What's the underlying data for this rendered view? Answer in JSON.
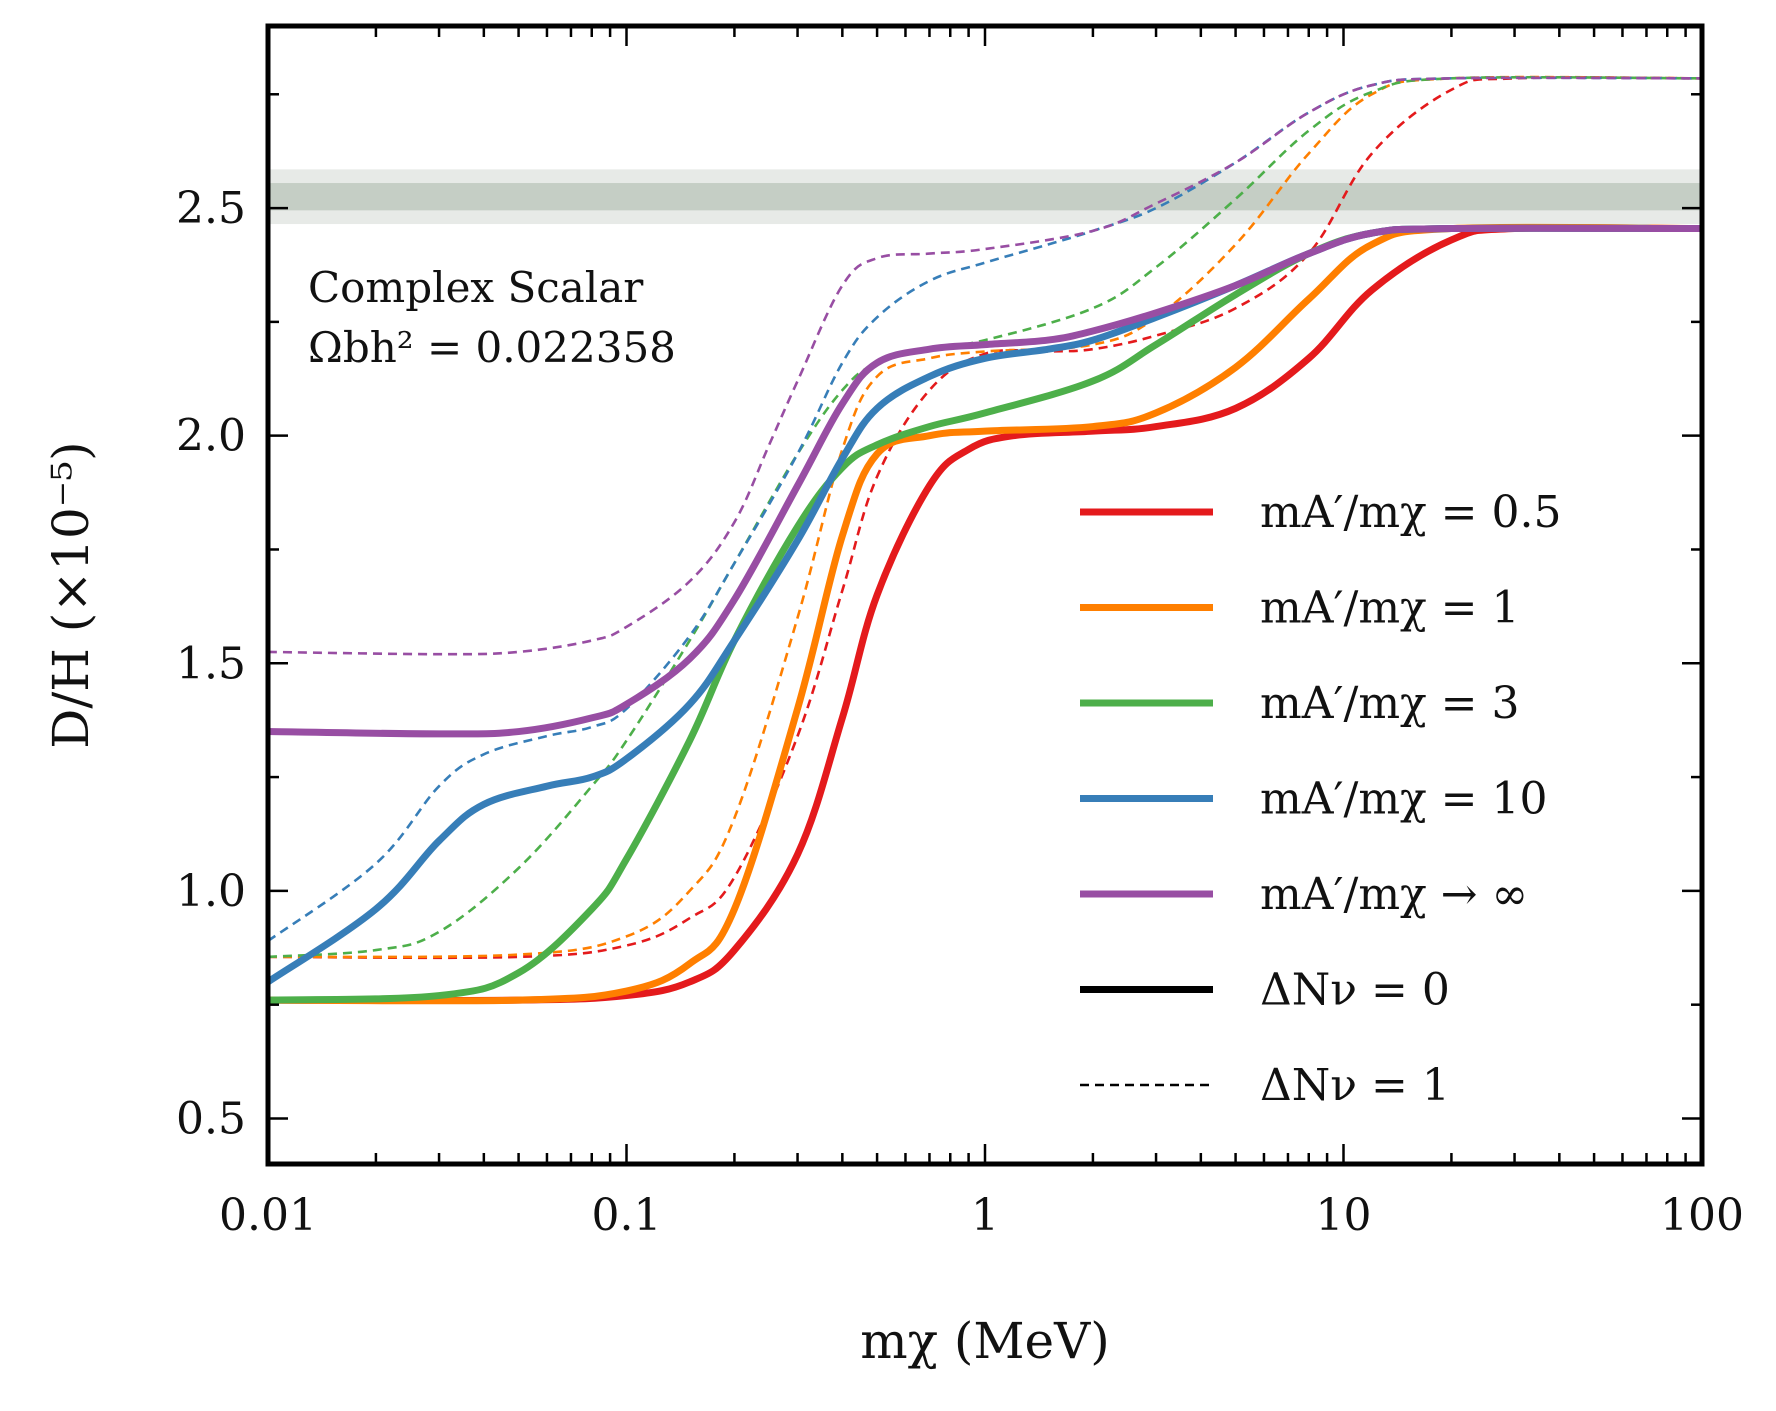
{
  "chart_data": {
    "type": "line",
    "x_scale": "log",
    "y_scale": "linear",
    "xlim": [
      0.01,
      100
    ],
    "ylim": [
      0.4,
      2.9
    ],
    "xlabel": "mχ (MeV)",
    "ylabel": "D/H (×10⁻⁵)",
    "x_ticks": [
      0.01,
      0.1,
      1,
      10,
      100
    ],
    "x_tick_labels": [
      "0.01",
      "0.1",
      "1",
      "10",
      "100"
    ],
    "y_ticks": [
      0.5,
      1.0,
      1.5,
      2.0,
      2.5
    ],
    "y_tick_labels": [
      "0.5",
      "1.0",
      "1.5",
      "2.0",
      "2.5"
    ],
    "grid": false,
    "annotation": {
      "line1": "Complex Scalar",
      "line2": "Ωbh² = 0.022358"
    },
    "observed_band": {
      "inner": [
        2.495,
        2.555
      ],
      "outer": [
        2.465,
        2.585
      ],
      "color": "#b9c4b9"
    },
    "legend_position": "lower-right",
    "legend": [
      {
        "label": "mA′/mχ = 0.5",
        "color": "#e41a1c",
        "style": "solid"
      },
      {
        "label": "mA′/mχ = 1",
        "color": "#ff7f00",
        "style": "solid"
      },
      {
        "label": "mA′/mχ = 3",
        "color": "#4daf4a",
        "style": "solid"
      },
      {
        "label": "mA′/mχ = 10",
        "color": "#377eb8",
        "style": "solid"
      },
      {
        "label": "mA′/mχ → ∞",
        "color": "#984ea3",
        "style": "solid"
      },
      {
        "label": "ΔNν = 0",
        "color": "#000000",
        "style": "solid"
      },
      {
        "label": "ΔNν = 1",
        "color": "#000000",
        "style": "dashed"
      }
    ],
    "series": [
      {
        "ratio": "0.5",
        "delta_n_nu": 0,
        "color": "#e41a1c",
        "dashed": false,
        "x": [
          0.01,
          0.05,
          0.1,
          0.15,
          0.2,
          0.3,
          0.4,
          0.5,
          0.7,
          0.9,
          1.2,
          2,
          3,
          5,
          8,
          12,
          20,
          30,
          100
        ],
        "y": [
          0.76,
          0.76,
          0.77,
          0.8,
          0.87,
          1.08,
          1.38,
          1.65,
          1.89,
          1.97,
          2.0,
          2.01,
          2.02,
          2.06,
          2.17,
          2.32,
          2.43,
          2.455,
          2.455
        ]
      },
      {
        "ratio": "1",
        "delta_n_nu": 0,
        "color": "#ff7f00",
        "dashed": false,
        "x": [
          0.01,
          0.05,
          0.1,
          0.15,
          0.2,
          0.3,
          0.4,
          0.5,
          0.7,
          1.0,
          2,
          3,
          5,
          8,
          12,
          20,
          100
        ],
        "y": [
          0.76,
          0.76,
          0.78,
          0.84,
          0.96,
          1.4,
          1.78,
          1.96,
          2.0,
          2.01,
          2.02,
          2.05,
          2.15,
          2.3,
          2.42,
          2.455,
          2.455
        ]
      },
      {
        "ratio": "3",
        "delta_n_nu": 0,
        "color": "#4daf4a",
        "dashed": false,
        "x": [
          0.01,
          0.03,
          0.05,
          0.08,
          0.1,
          0.15,
          0.2,
          0.3,
          0.4,
          0.5,
          0.7,
          1.0,
          2,
          3,
          5,
          8,
          12,
          20,
          100
        ],
        "y": [
          0.76,
          0.77,
          0.82,
          0.96,
          1.07,
          1.33,
          1.55,
          1.8,
          1.93,
          1.98,
          2.02,
          2.05,
          2.12,
          2.2,
          2.31,
          2.4,
          2.445,
          2.455,
          2.455
        ]
      },
      {
        "ratio": "10",
        "delta_n_nu": 0,
        "color": "#377eb8",
        "dashed": false,
        "x": [
          0.01,
          0.02,
          0.03,
          0.04,
          0.06,
          0.08,
          0.1,
          0.15,
          0.2,
          0.3,
          0.4,
          0.5,
          0.7,
          1.0,
          1.5,
          2,
          3,
          5,
          8,
          12,
          20,
          100
        ],
        "y": [
          0.8,
          0.96,
          1.11,
          1.19,
          1.23,
          1.25,
          1.29,
          1.41,
          1.55,
          1.77,
          1.95,
          2.06,
          2.13,
          2.17,
          2.19,
          2.21,
          2.26,
          2.33,
          2.4,
          2.445,
          2.455,
          2.455
        ]
      },
      {
        "ratio": "inf",
        "delta_n_nu": 0,
        "color": "#984ea3",
        "dashed": false,
        "x": [
          0.01,
          0.03,
          0.05,
          0.08,
          0.1,
          0.15,
          0.2,
          0.3,
          0.4,
          0.5,
          0.7,
          1.0,
          1.5,
          2,
          3,
          5,
          8,
          12,
          20,
          100
        ],
        "y": [
          1.35,
          1.345,
          1.35,
          1.38,
          1.41,
          1.51,
          1.64,
          1.89,
          2.07,
          2.16,
          2.19,
          2.2,
          2.21,
          2.23,
          2.27,
          2.33,
          2.4,
          2.445,
          2.455,
          2.455
        ]
      },
      {
        "ratio": "0.5",
        "delta_n_nu": 1,
        "color": "#e41a1c",
        "dashed": true,
        "x": [
          0.01,
          0.05,
          0.1,
          0.15,
          0.2,
          0.3,
          0.4,
          0.5,
          0.7,
          1.0,
          1.5,
          2,
          3,
          5,
          8,
          12,
          20,
          30,
          100
        ],
        "y": [
          0.855,
          0.855,
          0.88,
          0.94,
          1.03,
          1.34,
          1.66,
          1.91,
          2.1,
          2.18,
          2.185,
          2.19,
          2.22,
          2.28,
          2.4,
          2.62,
          2.76,
          2.785,
          2.785
        ]
      },
      {
        "ratio": "1",
        "delta_n_nu": 1,
        "color": "#ff7f00",
        "dashed": true,
        "x": [
          0.01,
          0.05,
          0.1,
          0.15,
          0.2,
          0.3,
          0.4,
          0.5,
          0.7,
          1.0,
          2,
          3,
          5,
          8,
          12,
          20,
          100
        ],
        "y": [
          0.855,
          0.86,
          0.9,
          1.0,
          1.16,
          1.6,
          1.97,
          2.13,
          2.17,
          2.185,
          2.2,
          2.26,
          2.42,
          2.62,
          2.75,
          2.785,
          2.785
        ]
      },
      {
        "ratio": "3",
        "delta_n_nu": 1,
        "color": "#4daf4a",
        "dashed": true,
        "x": [
          0.01,
          0.02,
          0.03,
          0.05,
          0.08,
          0.1,
          0.15,
          0.2,
          0.3,
          0.4,
          0.5,
          0.7,
          1.0,
          2,
          3,
          5,
          8,
          12,
          20,
          100
        ],
        "y": [
          0.855,
          0.87,
          0.91,
          1.05,
          1.23,
          1.33,
          1.55,
          1.72,
          1.96,
          2.1,
          2.16,
          2.19,
          2.21,
          2.28,
          2.37,
          2.52,
          2.67,
          2.755,
          2.785,
          2.785
        ]
      },
      {
        "ratio": "10",
        "delta_n_nu": 1,
        "color": "#377eb8",
        "dashed": true,
        "x": [
          0.01,
          0.02,
          0.03,
          0.04,
          0.06,
          0.08,
          0.1,
          0.15,
          0.2,
          0.3,
          0.4,
          0.5,
          0.7,
          1.0,
          1.5,
          2,
          3,
          5,
          8,
          12,
          20,
          100
        ],
        "y": [
          0.89,
          1.06,
          1.23,
          1.3,
          1.34,
          1.36,
          1.4,
          1.56,
          1.72,
          1.96,
          2.16,
          2.26,
          2.34,
          2.38,
          2.42,
          2.45,
          2.5,
          2.6,
          2.71,
          2.77,
          2.785,
          2.785
        ]
      },
      {
        "ratio": "inf",
        "delta_n_nu": 1,
        "color": "#984ea3",
        "dashed": true,
        "x": [
          0.01,
          0.03,
          0.05,
          0.08,
          0.1,
          0.15,
          0.2,
          0.25,
          0.3,
          0.4,
          0.5,
          0.7,
          1.0,
          2,
          3,
          5,
          8,
          12,
          20,
          100
        ],
        "y": [
          1.525,
          1.52,
          1.525,
          1.55,
          1.58,
          1.68,
          1.81,
          1.98,
          2.12,
          2.33,
          2.39,
          2.4,
          2.41,
          2.45,
          2.51,
          2.6,
          2.71,
          2.77,
          2.785,
          2.785
        ]
      }
    ]
  }
}
